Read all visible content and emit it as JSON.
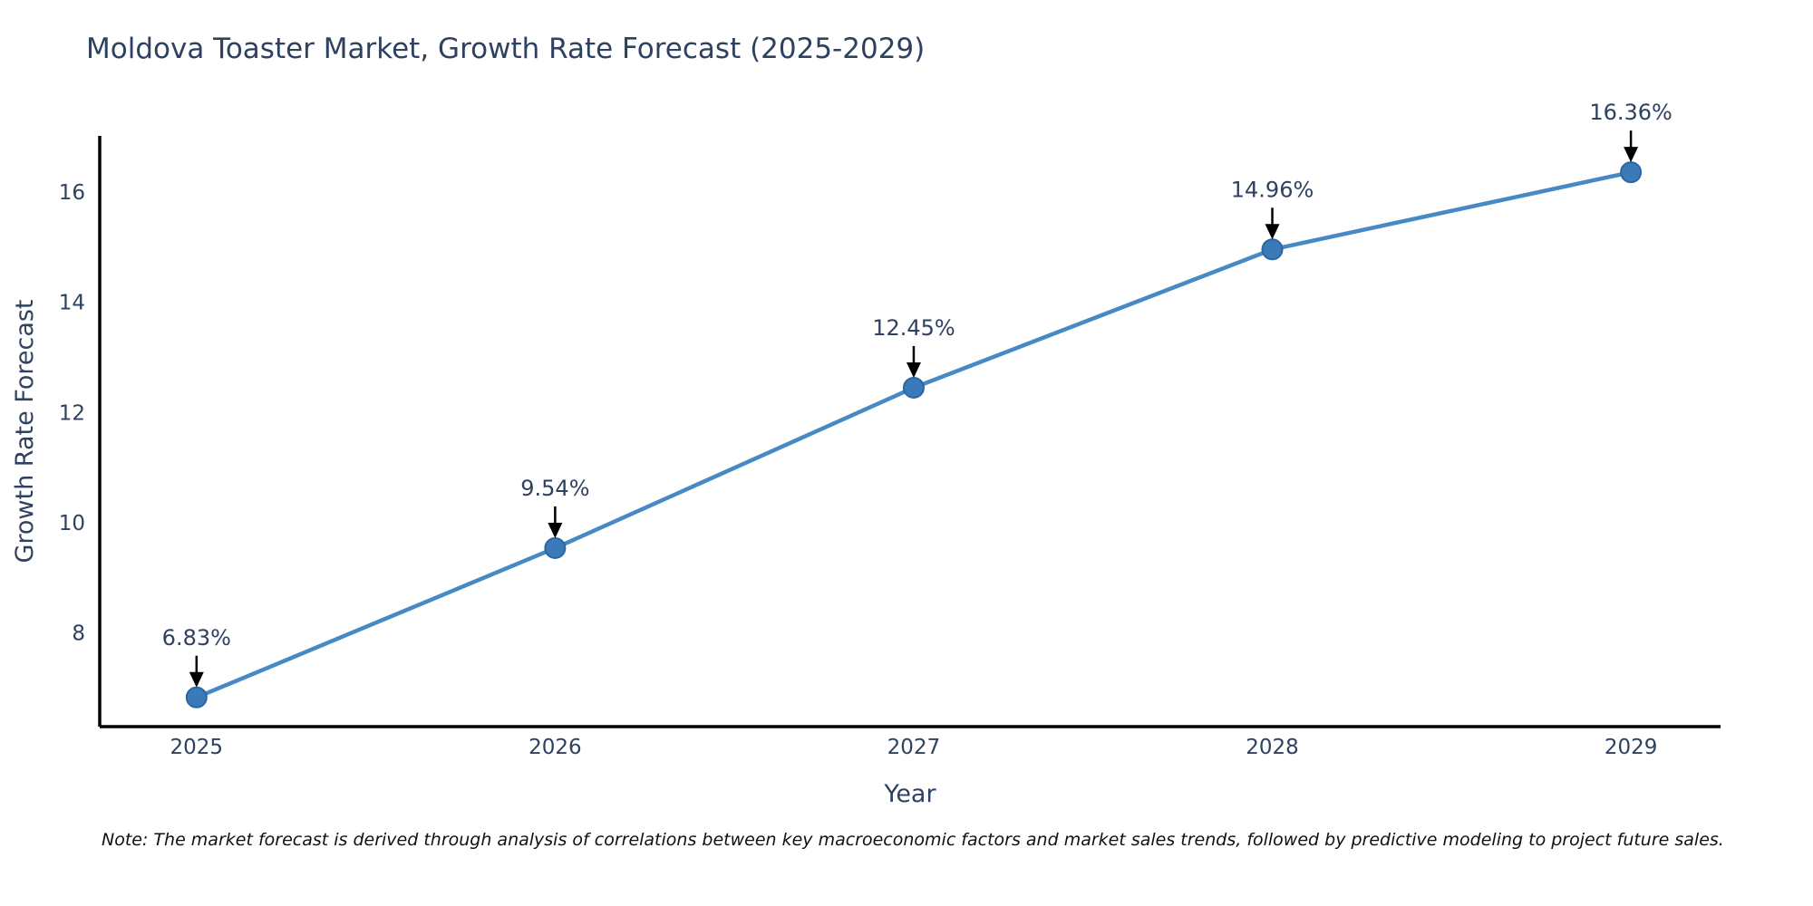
{
  "chart_data": {
    "type": "line",
    "title": "Moldova Toaster Market, Growth Rate Forecast (2025-2029)",
    "xlabel": "Year",
    "ylabel": "Growth Rate Forecast",
    "x": [
      2025,
      2026,
      2027,
      2028,
      2029
    ],
    "values": [
      6.83,
      9.54,
      12.45,
      14.96,
      16.36
    ],
    "point_labels": [
      "6.83%",
      "9.54%",
      "12.45%",
      "14.96%",
      "16.36%"
    ],
    "xticks": [
      "2025",
      "2026",
      "2027",
      "2028",
      "2029"
    ],
    "xtick_positions": [
      2025,
      2026,
      2027,
      2028,
      2029
    ],
    "yticks": [
      8,
      10,
      12,
      14,
      16
    ],
    "xlim": [
      2024.73,
      2029.25
    ],
    "ylim": [
      6.3,
      17.02
    ],
    "grid": false,
    "legend": "none",
    "colors": {
      "line": "#4789c4",
      "marker": "#3b7ab9",
      "marker_edge": "#2c66a0",
      "arrow": "#000000",
      "axis": "#000000",
      "text": "#2f4160",
      "note_text": "#101010",
      "background": "#ffffff"
    },
    "note": "Note: The market forecast is derived through analysis of correlations between key macroeconomic factors and market sales trends, followed by predictive modeling to project future sales."
  }
}
